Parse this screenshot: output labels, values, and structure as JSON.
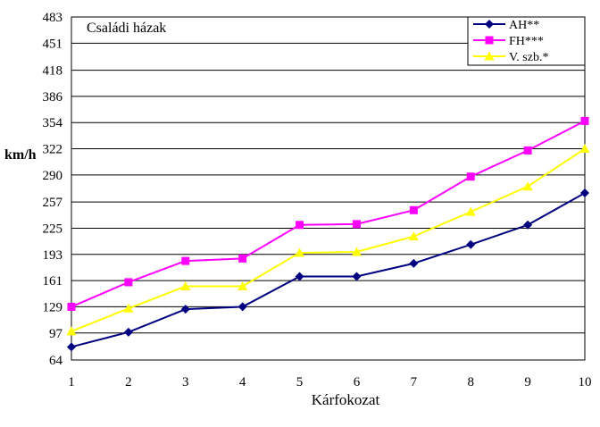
{
  "chart_data": {
    "type": "line",
    "title": "Családi házak",
    "xlabel": "Kárfokozat",
    "ylabel": "km/h",
    "x": [
      1,
      2,
      3,
      4,
      5,
      6,
      7,
      8,
      9,
      10
    ],
    "xlim": [
      1,
      10
    ],
    "ylim": [
      64,
      483
    ],
    "yticks": [
      64,
      97,
      129,
      161,
      193,
      225,
      257,
      290,
      322,
      354,
      386,
      418,
      451,
      483
    ],
    "grid": "horizontal",
    "legend_position": "top-right",
    "series": [
      {
        "name": "AH**",
        "color": "#000080",
        "marker": "diamond",
        "values": [
          80,
          98,
          126,
          129,
          166,
          166,
          182,
          205,
          229,
          268
        ]
      },
      {
        "name": "FH***",
        "color": "#ff00ff",
        "marker": "square",
        "values": [
          129,
          159,
          185,
          188,
          229,
          230,
          247,
          288,
          320,
          356
        ]
      },
      {
        "name": "V. szb.*",
        "color": "#ffff00",
        "marker": "triangle",
        "values": [
          99,
          127,
          154,
          154,
          195,
          196,
          215,
          245,
          276,
          322
        ]
      }
    ]
  }
}
